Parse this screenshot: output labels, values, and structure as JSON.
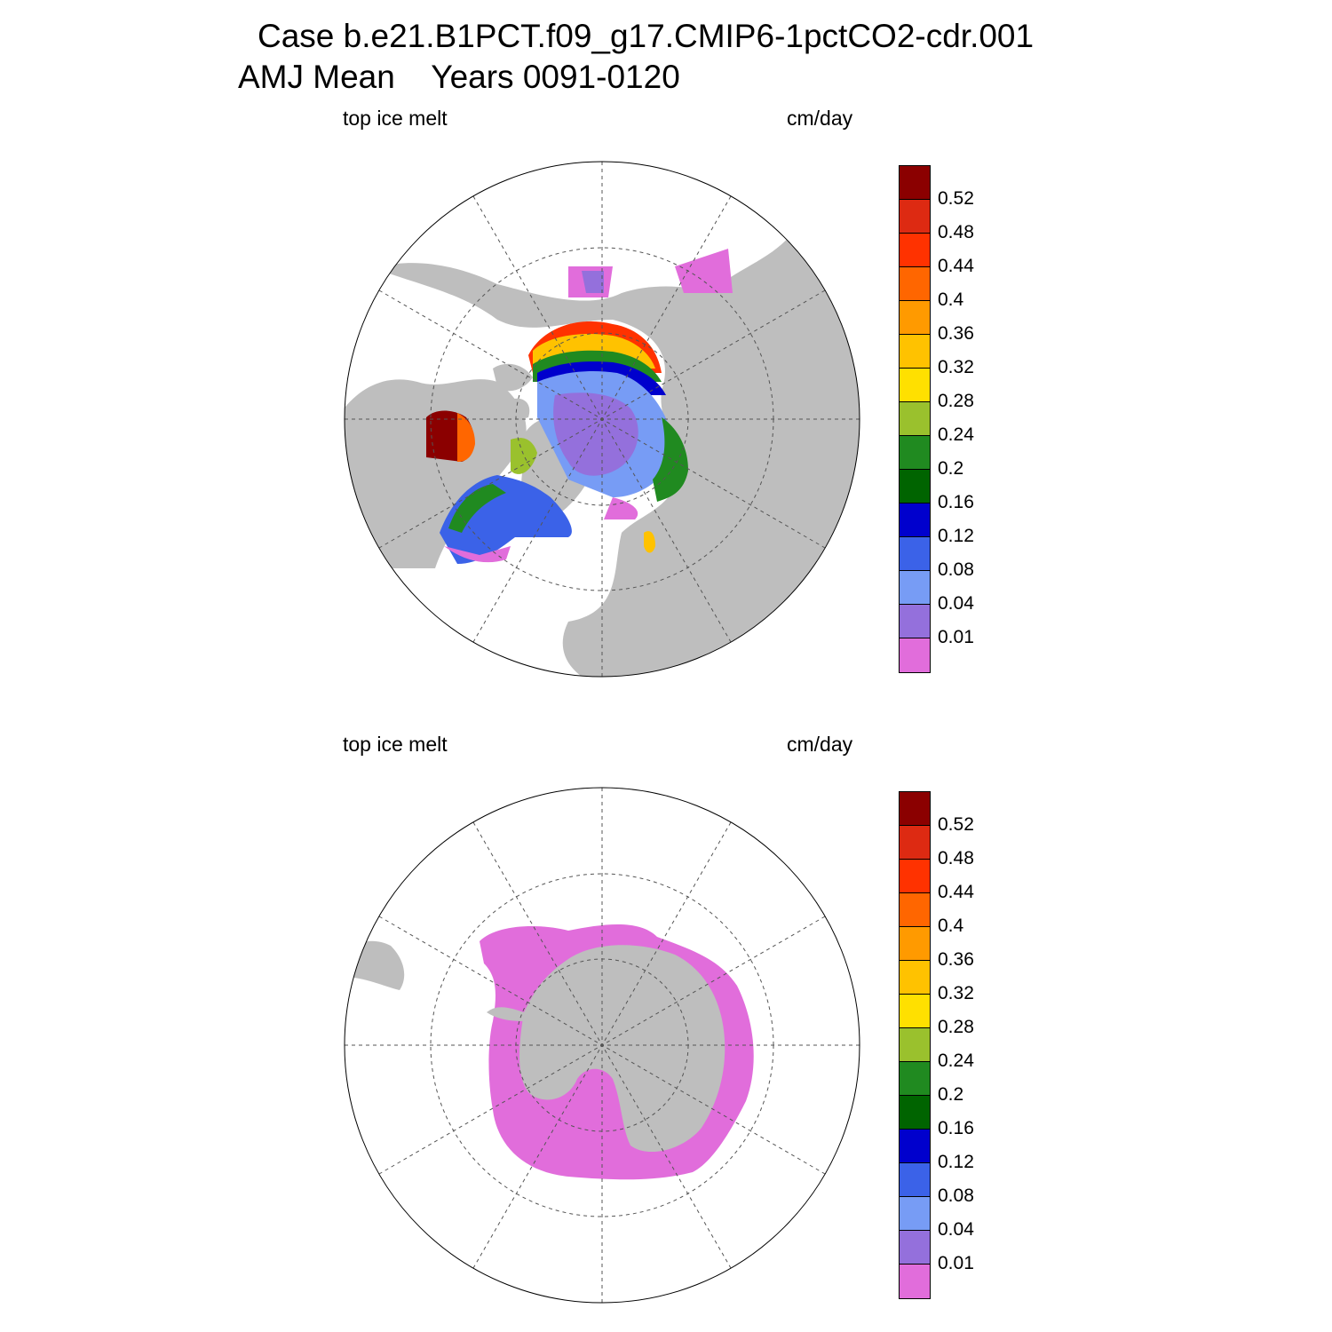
{
  "header": {
    "title_line1": "Case b.e21.B1PCT.f09_g17.CMIP6-1pctCO2-cdr.001",
    "title_line2": "AMJ Mean    Years 0091-0120"
  },
  "colorbar": {
    "colors": [
      "#8b0000",
      "#dd2a12",
      "#ff3200",
      "#ff6600",
      "#ff9a00",
      "#ffc200",
      "#ffe000",
      "#9ac12d",
      "#208a20",
      "#006400",
      "#0000cd",
      "#3b62e8",
      "#779cf5",
      "#9470dc",
      "#e16ddb"
    ],
    "levels": [
      "0.52",
      "0.48",
      "0.44",
      "0.4",
      "0.36",
      "0.32",
      "0.28",
      "0.24",
      "0.2",
      "0.16",
      "0.12",
      "0.08",
      "0.04",
      "0.01"
    ]
  },
  "panels": [
    {
      "hemisphere": "north",
      "left_label": "top ice melt",
      "right_label": "cm/day"
    },
    {
      "hemisphere": "south",
      "left_label": "top ice melt",
      "right_label": "cm/day"
    }
  ],
  "map_style": {
    "land": "#bebebe",
    "ocean": "#ffffff",
    "grid": "dashed"
  }
}
